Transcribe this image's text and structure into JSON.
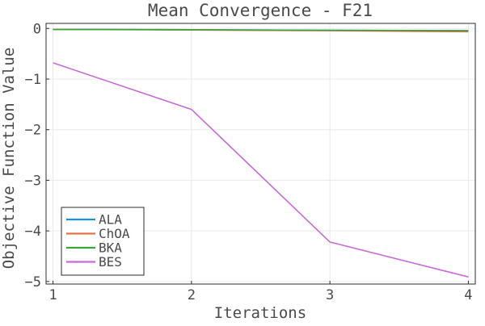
{
  "chart_data": {
    "type": "line",
    "title": "Mean Convergence - F21",
    "xlabel": "Iterations",
    "ylabel": "Objective Function Value",
    "x": [
      1,
      2,
      3,
      4
    ],
    "xlim": [
      0.95,
      4.05
    ],
    "ylim": [
      -5.05,
      0.1
    ],
    "xticks": [
      1,
      2,
      3,
      4
    ],
    "yticks": [
      0,
      -1,
      -2,
      -3,
      -4,
      -5
    ],
    "ytick_labels": [
      "0",
      "−1",
      "−2",
      "−3",
      "−4",
      "−5"
    ],
    "grid": true,
    "legend_position": "bottom-left",
    "series": [
      {
        "name": "ALA",
        "color": "#1f8ee9",
        "values": [
          -0.02,
          -0.025,
          -0.035,
          -0.045
        ]
      },
      {
        "name": "ChOA",
        "color": "#e2734a",
        "values": [
          -0.02,
          -0.03,
          -0.045,
          -0.065
        ]
      },
      {
        "name": "BKA",
        "color": "#3ca23c",
        "values": [
          -0.02,
          -0.025,
          -0.035,
          -0.045
        ]
      },
      {
        "name": "BES",
        "color": "#c46cd3",
        "values": [
          -0.68,
          -1.6,
          -4.22,
          -4.91
        ]
      }
    ]
  }
}
